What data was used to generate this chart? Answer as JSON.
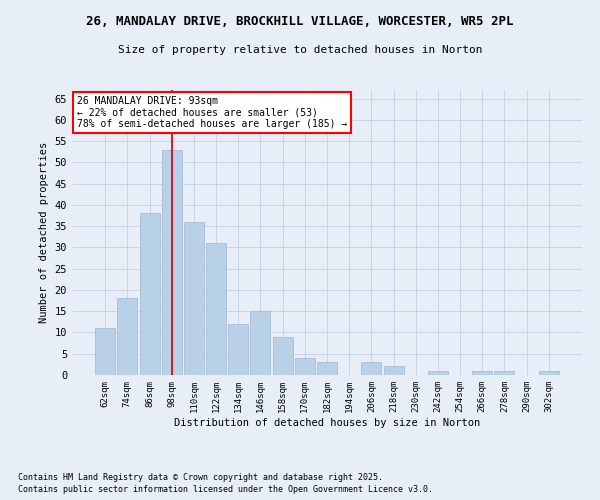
{
  "title_line1": "26, MANDALAY DRIVE, BROCKHILL VILLAGE, WORCESTER, WR5 2PL",
  "title_line2": "Size of property relative to detached houses in Norton",
  "xlabel": "Distribution of detached houses by size in Norton",
  "ylabel": "Number of detached properties",
  "categories": [
    "62sqm",
    "74sqm",
    "86sqm",
    "98sqm",
    "110sqm",
    "122sqm",
    "134sqm",
    "146sqm",
    "158sqm",
    "170sqm",
    "182sqm",
    "194sqm",
    "206sqm",
    "218sqm",
    "230sqm",
    "242sqm",
    "254sqm",
    "266sqm",
    "278sqm",
    "290sqm",
    "302sqm"
  ],
  "values": [
    11,
    18,
    38,
    53,
    36,
    31,
    12,
    15,
    9,
    4,
    3,
    0,
    3,
    2,
    0,
    1,
    0,
    1,
    1,
    0,
    1
  ],
  "bar_color": "#b8d0e8",
  "bar_edge_color": "#a0b8d0",
  "background_color": "#e8eef8",
  "grid_color": "#c8d4e8",
  "annotation_text": "26 MANDALAY DRIVE: 93sqm\n← 22% of detached houses are smaller (53)\n78% of semi-detached houses are larger (185) →",
  "redline_x": 3,
  "ylim": [
    0,
    67
  ],
  "yticks": [
    0,
    5,
    10,
    15,
    20,
    25,
    30,
    35,
    40,
    45,
    50,
    55,
    60,
    65
  ],
  "footer_line1": "Contains HM Land Registry data © Crown copyright and database right 2025.",
  "footer_line2": "Contains public sector information licensed under the Open Government Licence v3.0."
}
